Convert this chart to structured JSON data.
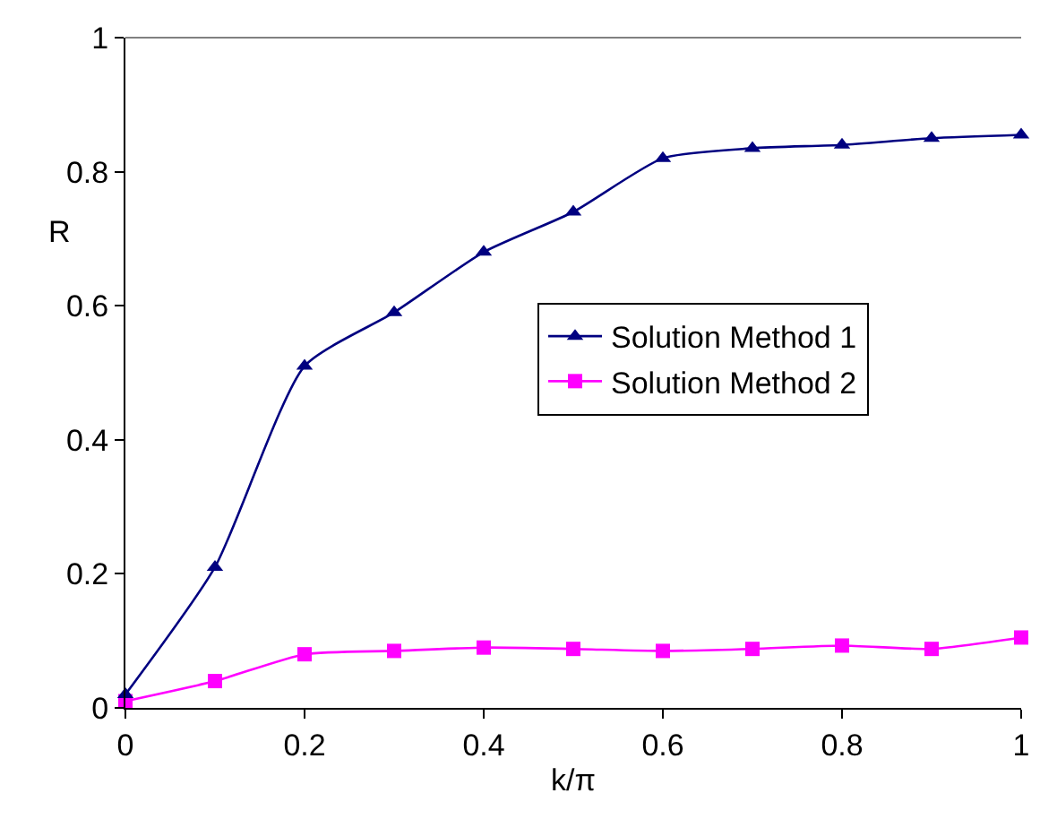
{
  "chart_data": {
    "type": "line",
    "xlabel": "k/π",
    "ylabel": "R",
    "x": [
      0,
      0.1,
      0.2,
      0.3,
      0.4,
      0.5,
      0.6,
      0.7,
      0.8,
      0.9,
      1
    ],
    "xlim": [
      0,
      1
    ],
    "xticks": [
      0,
      0.2,
      0.4,
      0.6,
      0.8,
      1
    ],
    "ylim": [
      0,
      1
    ],
    "yticks": [
      0,
      0.2,
      0.4,
      0.6,
      0.8,
      1
    ],
    "legend": "right",
    "line_style": "solid",
    "series": [
      {
        "name": "Solution Method 1",
        "color": "#000080",
        "marker": "triangle",
        "values": [
          0.02,
          0.21,
          0.51,
          0.59,
          0.68,
          0.74,
          0.82,
          0.835,
          0.84,
          0.85,
          0.855
        ]
      },
      {
        "name": "Solution Method 2",
        "color": "#ff00ff",
        "marker": "square",
        "values": [
          0.01,
          0.04,
          0.08,
          0.085,
          0.09,
          0.088,
          0.085,
          0.088,
          0.093,
          0.088,
          0.105
        ]
      }
    ]
  }
}
